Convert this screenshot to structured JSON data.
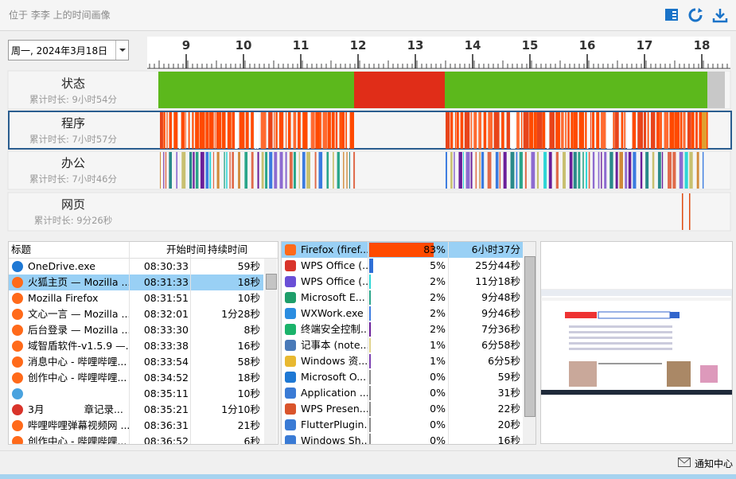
{
  "header": {
    "title": "位于 李李 上的时间画像"
  },
  "date_picker": {
    "value": "周一, 2024年3月18日"
  },
  "timeline": {
    "hours": [
      9,
      10,
      11,
      12,
      13,
      14,
      15,
      16,
      17,
      18
    ],
    "tracks": [
      {
        "name": "状态",
        "total": "累计时长: 9小时54分"
      },
      {
        "name": "程序",
        "total": "累计时长: 7小时57分"
      },
      {
        "name": "办公",
        "total": "累计时长: 7小时46分"
      },
      {
        "name": "网页",
        "total": "累计时长: 9分26秒"
      }
    ]
  },
  "events_table": {
    "columns": [
      "标题",
      "开始时间",
      "持续时间"
    ],
    "rows": [
      {
        "title": "OneDrive.exe",
        "start": "08:30:33",
        "duration": "59秒",
        "icon_color": "#1e78d4"
      },
      {
        "title": "火狐主页 — Mozilla ...",
        "start": "08:31:33",
        "duration": "18秒",
        "icon_color": "#ff6a1a"
      },
      {
        "title": "Mozilla Firefox",
        "start": "08:31:51",
        "duration": "10秒",
        "icon_color": "#ff6a1a"
      },
      {
        "title": "文心一言 — Mozilla ...",
        "start": "08:32:01",
        "duration": "1分28秒",
        "icon_color": "#ff6a1a"
      },
      {
        "title": "后台登录 — Mozilla ...",
        "start": "08:33:30",
        "duration": "8秒",
        "icon_color": "#ff6a1a"
      },
      {
        "title": "域智盾软件-v1.5.9 —...",
        "start": "08:33:38",
        "duration": "16秒",
        "icon_color": "#ff6a1a"
      },
      {
        "title": "消息中心 - 哔哩哔哩...",
        "start": "08:33:54",
        "duration": "58秒",
        "icon_color": "#ff6a1a"
      },
      {
        "title": "创作中心 - 哔哩哔哩...",
        "start": "08:34:52",
        "duration": "18秒",
        "icon_color": "#ff6a1a"
      },
      {
        "start": "08:35:11",
        "duration": "10秒",
        "icon_color": "#4aa3df"
      },
      {
        "title": "3月　　　　章记录...",
        "start": "08:35:21",
        "duration": "1分10秒",
        "icon_color": "#d9342b"
      },
      {
        "title": "哔哩哔哩弹幕视频网 ...",
        "start": "08:36:31",
        "duration": "21秒",
        "icon_color": "#ff6a1a"
      },
      {
        "title": "创作中心 - 哔哩哔哩...",
        "start": "08:36:52",
        "duration": "6秒",
        "icon_color": "#ff6a1a"
      }
    ]
  },
  "apps_table": {
    "rows": [
      {
        "name": "Firefox (firef...",
        "share": {
          "value": 83,
          "label": "83%"
        },
        "duration": "6小时37分",
        "color": "#ff4a00",
        "icon_color": "#ff6a1a"
      },
      {
        "name": "WPS Office (...",
        "share": {
          "value": 5,
          "label": "5%"
        },
        "duration": "25分44秒",
        "color": "#2f6fd6",
        "icon_color": "#d9342b"
      },
      {
        "name": "WPS Office (...",
        "share": {
          "value": 2,
          "label": "2%"
        },
        "duration": "11分18秒",
        "color": "#2fd6d6",
        "icon_color": "#6a4fd6"
      },
      {
        "name": "Microsoft E...",
        "share": {
          "value": 2,
          "label": "2%"
        },
        "duration": "9分48秒",
        "color": "#2aa58a",
        "icon_color": "#1e9e6a"
      },
      {
        "name": "WXWork.exe",
        "share": {
          "value": 2,
          "label": "2%"
        },
        "duration": "9分46秒",
        "color": "#3b7be0",
        "icon_color": "#2b8de0"
      },
      {
        "name": "终端安全控制...",
        "share": {
          "value": 2,
          "label": "2%"
        },
        "duration": "7分36秒",
        "color": "#6a1f9a",
        "icon_color": "#1bb36a"
      },
      {
        "name": "记事本 (note...",
        "share": {
          "value": 1,
          "label": "1%"
        },
        "duration": "6分58秒",
        "color": "#e0d28a",
        "icon_color": "#4a7ab8"
      },
      {
        "name": "Windows 资...",
        "share": {
          "value": 1,
          "label": "1%"
        },
        "duration": "6分5秒",
        "color": "#7a3fb0",
        "icon_color": "#e8b830"
      },
      {
        "name": "Microsoft O...",
        "share": {
          "value": 0,
          "label": "0%"
        },
        "duration": "59秒",
        "color": "#888888",
        "icon_color": "#1e78d4"
      },
      {
        "name": "Application ...",
        "share": {
          "value": 0,
          "label": "0%"
        },
        "duration": "31秒",
        "color": "#888888",
        "icon_color": "#3a7bd5"
      },
      {
        "name": "WPS Presen...",
        "share": {
          "value": 0,
          "label": "0%"
        },
        "duration": "22秒",
        "color": "#888888",
        "icon_color": "#d9542b"
      },
      {
        "name": "FlutterPlugin...",
        "share": {
          "value": 0,
          "label": "0%"
        },
        "duration": "20秒",
        "color": "#888888",
        "icon_color": "#3a7bd5"
      },
      {
        "name": "Windows Sh...",
        "share": {
          "value": 0,
          "label": "0%"
        },
        "duration": "16秒",
        "color": "#888888",
        "icon_color": "#3a7bd5"
      }
    ]
  },
  "footer": {
    "notification": "通知中心"
  }
}
